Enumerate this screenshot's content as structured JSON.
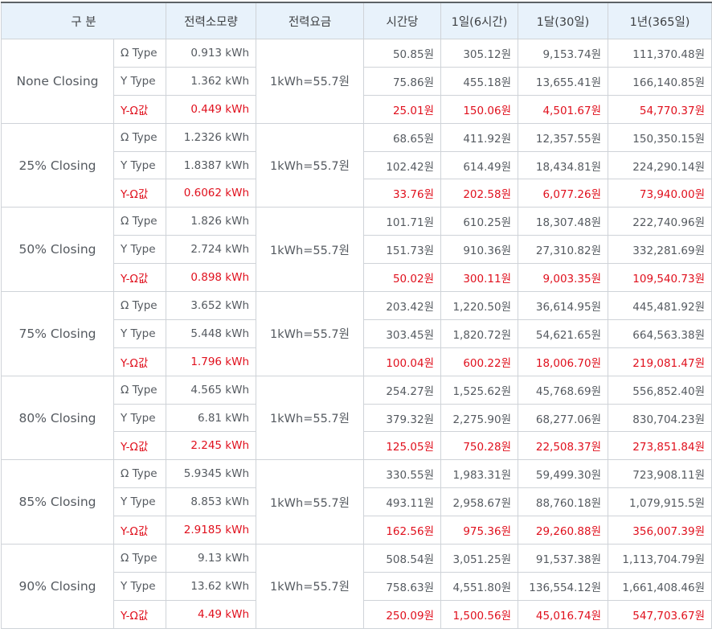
{
  "headers": [
    "구 분",
    "전력소모량",
    "전력요금",
    "시간당",
    "1일(6시간)",
    "1달(30일)",
    "1년(365일)"
  ],
  "rate": "1kWh=55.7원",
  "groups": [
    {
      "name": "None Closing",
      "rows": [
        [
          "Ω Type",
          "0.913 kWh",
          "50.85원",
          "305.12원",
          "9,153.74원",
          "111,370.48원"
        ],
        [
          "Y Type",
          "1.362 kWh",
          "75.86원",
          "455.18원",
          "13,655.41원",
          "166,140.85원"
        ],
        [
          "Y-Ω값",
          "0.449 kWh",
          "25.01원",
          "150.06원",
          "4,501.67원",
          "54,770.37원"
        ]
      ]
    },
    {
      "name": "25% Closing",
      "rows": [
        [
          "Ω Type",
          "1.2326 kWh",
          "68.65원",
          "411.92원",
          "12,357.55원",
          "150,350.15원"
        ],
        [
          "Y Type",
          "1.8387 kWh",
          "102.42원",
          "614.49원",
          "18,434.81원",
          "224,290.14원"
        ],
        [
          "Y-Ω값",
          "0.6062 kWh",
          "33.76원",
          "202.58원",
          "6,077.26원",
          "73,940.00원"
        ]
      ]
    },
    {
      "name": "50% Closing",
      "rows": [
        [
          "Ω Type",
          "1.826 kWh",
          "101.71원",
          "610.25원",
          "18,307.48원",
          "222,740.96원"
        ],
        [
          "Y Type",
          "2.724 kWh",
          "151.73원",
          "910.36원",
          "27,310.82원",
          "332,281.69원"
        ],
        [
          "Y-Ω값",
          "0.898 kWh",
          "50.02원",
          "300.11원",
          "9,003.35원",
          "109,540.73원"
        ]
      ]
    },
    {
      "name": "75% Closing",
      "rows": [
        [
          "Ω Type",
          "3.652 kWh",
          "203.42원",
          "1,220.50원",
          "36,614.95원",
          "445,481.92원"
        ],
        [
          "Y Type",
          "5.448 kWh",
          "303.45원",
          "1,820.72원",
          "54,621.65원",
          "664,563.38원"
        ],
        [
          "Y-Ω값",
          "1.796 kWh",
          "100.04원",
          "600.22원",
          "18,006.70원",
          "219,081.47원"
        ]
      ]
    },
    {
      "name": "80% Closing",
      "rows": [
        [
          "Ω Type",
          "4.565 kWh",
          "254.27원",
          "1,525.62원",
          "45,768.69원",
          "556,852.40원"
        ],
        [
          "Y Type",
          "6.81 kWh",
          "379.32원",
          "2,275.90원",
          "68,277.06원",
          "830,704.23원"
        ],
        [
          "Y-Ω값",
          "2.245 kWh",
          "125.05원",
          "750.28원",
          "22,508.37원",
          "273,851.84원"
        ]
      ]
    },
    {
      "name": "85% Closing",
      "rows": [
        [
          "Ω Type",
          "5.9345 kWh",
          "330.55원",
          "1,983.31원",
          "59,499.30원",
          "723,908.11원"
        ],
        [
          "Y Type",
          "8.853 kWh",
          "493.11원",
          "2,958.67원",
          "88,760.18원",
          "1,079,915.5원"
        ],
        [
          "Y-Ω값",
          "2.9185 kWh",
          "162.56원",
          "975.36원",
          "29,260.88원",
          "356,007.39원"
        ]
      ]
    },
    {
      "name": "90% Closing",
      "rows": [
        [
          "Ω Type",
          "9.13 kWh",
          "508.54원",
          "3,051.25원",
          "91,537.38원",
          "1,113,704.79원"
        ],
        [
          "Y Type",
          "13.62 kWh",
          "758.63원",
          "4,551.80원",
          "136,554.12원",
          "1,661,408.46원"
        ],
        [
          "Y-Ω값",
          "4.49 kWh",
          "250.09원",
          "1,500.56원",
          "45,016.74원",
          "547,703.67원"
        ]
      ]
    }
  ],
  "colors": {
    "header_bg": "#e8f2fb",
    "diff_text": "#e0101d",
    "text": "#555a60",
    "border": "#cfd3d8"
  }
}
